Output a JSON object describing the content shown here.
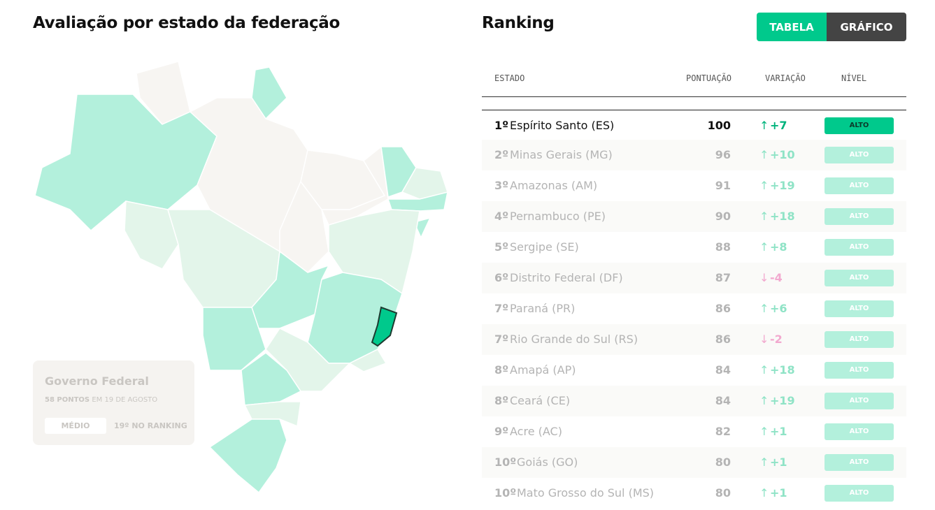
{
  "header": {
    "title": "Avaliação por estado da federação"
  },
  "federal_card": {
    "title": "Governo Federal",
    "points": "58 PONTOS",
    "date": "EM 19 DE AGOSTO",
    "level": "MÉDIO",
    "ranking": "19º NO RANKING"
  },
  "ranking": {
    "title": "Ranking",
    "tabs": [
      "TABELA",
      "GRÁFICO"
    ],
    "columns": [
      "ESTADO",
      "PONTUAÇÃO",
      "VARIAÇÃO",
      "NÍVEL"
    ],
    "rows": [
      {
        "rank": "1º",
        "state": "Espírito Santo (ES)",
        "score": 100,
        "arrow": "↑",
        "variation": "+7",
        "level": "ALTO"
      },
      {
        "rank": "2º",
        "state": "Minas Gerais (MG)",
        "score": 96,
        "arrow": "↑",
        "variation": "+10",
        "level": "ALTO"
      },
      {
        "rank": "3º",
        "state": "Amazonas (AM)",
        "score": 91,
        "arrow": "↑",
        "variation": "+19",
        "level": "ALTO"
      },
      {
        "rank": "4º",
        "state": "Pernambuco (PE)",
        "score": 90,
        "arrow": "↑",
        "variation": "+18",
        "level": "ALTO"
      },
      {
        "rank": "5º",
        "state": "Sergipe (SE)",
        "score": 88,
        "arrow": "↑",
        "variation": "+8",
        "level": "ALTO"
      },
      {
        "rank": "6º",
        "state": "Distrito Federal (DF)",
        "score": 87,
        "arrow": "↓",
        "variation": "-4",
        "level": "ALTO"
      },
      {
        "rank": "7º",
        "state": "Paraná (PR)",
        "score": 86,
        "arrow": "↑",
        "variation": "+6",
        "level": "ALTO"
      },
      {
        "rank": "7º",
        "state": "Rio Grande do Sul (RS)",
        "score": 86,
        "arrow": "↓",
        "variation": "-2",
        "level": "ALTO"
      },
      {
        "rank": "8º",
        "state": "Amapá (AP)",
        "score": 84,
        "arrow": "↑",
        "variation": "+18",
        "level": "ALTO"
      },
      {
        "rank": "8º",
        "state": "Ceará (CE)",
        "score": 84,
        "arrow": "↑",
        "variation": "+19",
        "level": "ALTO"
      },
      {
        "rank": "9º",
        "state": "Acre (AC)",
        "score": 82,
        "arrow": "↑",
        "variation": "+1",
        "level": "ALTO"
      },
      {
        "rank": "10º",
        "state": "Goiás (GO)",
        "score": 80,
        "arrow": "↑",
        "variation": "+1",
        "level": "ALTO"
      },
      {
        "rank": "10º",
        "state": "Mato Grosso do Sul (MS)",
        "score": 80,
        "arrow": "↑",
        "variation": "+1",
        "level": "ALTO"
      }
    ]
  }
}
